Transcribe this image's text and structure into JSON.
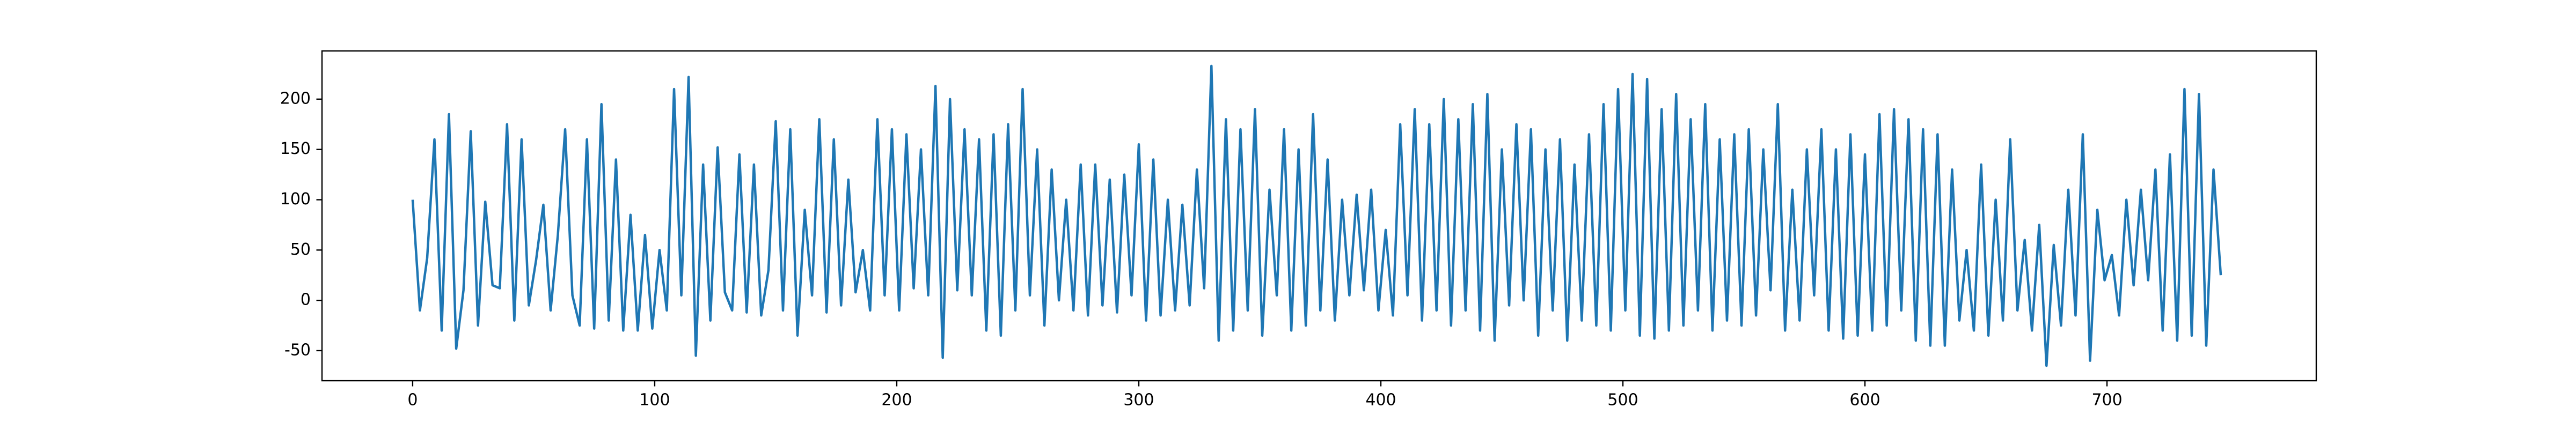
{
  "chart_data": {
    "type": "line",
    "color": "#1f77b4",
    "x": [
      0,
      3,
      6,
      9,
      12,
      15,
      18,
      21,
      24,
      27,
      30,
      33,
      36,
      39,
      42,
      45,
      48,
      51,
      54,
      57,
      60,
      63,
      66,
      69,
      72,
      75,
      78,
      81,
      84,
      87,
      90,
      93,
      96,
      99,
      102,
      105,
      108,
      111,
      114,
      117,
      120,
      123,
      126,
      129,
      132,
      135,
      138,
      141,
      144,
      147,
      150,
      153,
      156,
      159,
      162,
      165,
      168,
      171,
      174,
      177,
      180,
      183,
      186,
      189,
      192,
      195,
      198,
      201,
      204,
      207,
      210,
      213,
      216,
      219,
      222,
      225,
      228,
      231,
      234,
      237,
      240,
      243,
      246,
      249,
      252,
      255,
      258,
      261,
      264,
      267,
      270,
      273,
      276,
      279,
      282,
      285,
      288,
      291,
      294,
      297,
      300,
      303,
      306,
      309,
      312,
      315,
      318,
      321,
      324,
      327,
      330,
      333,
      336,
      339,
      342,
      345,
      348,
      351,
      354,
      357,
      360,
      363,
      366,
      369,
      372,
      375,
      378,
      381,
      384,
      387,
      390,
      393,
      396,
      399,
      402,
      405,
      408,
      411,
      414,
      417,
      420,
      423,
      426,
      429,
      432,
      435,
      438,
      441,
      444,
      447,
      450,
      453,
      456,
      459,
      462,
      465,
      468,
      471,
      474,
      477,
      480,
      483,
      486,
      489,
      492,
      495,
      498,
      501,
      504,
      507,
      510,
      513,
      516,
      519,
      522,
      525,
      528,
      531,
      534,
      537,
      540,
      543,
      546,
      549,
      552,
      555,
      558,
      561,
      564,
      567,
      570,
      573,
      576,
      579,
      582,
      585,
      588,
      591,
      594,
      597,
      600,
      603,
      606,
      609,
      612,
      615,
      618,
      621,
      624,
      627,
      630,
      633,
      636,
      639,
      642,
      645,
      648,
      651,
      654,
      657,
      660,
      663,
      666,
      669,
      672,
      675,
      678,
      681,
      684,
      687,
      690,
      693,
      696,
      699,
      702,
      705,
      708,
      711,
      714,
      717,
      720,
      723,
      726,
      729,
      732,
      735,
      738,
      741,
      744,
      747
    ],
    "values": [
      100,
      -10,
      42,
      160,
      -30,
      185,
      -48,
      10,
      168,
      -25,
      98,
      15,
      12,
      175,
      -20,
      160,
      -5,
      40,
      95,
      -10,
      65,
      170,
      5,
      -25,
      160,
      -28,
      195,
      -20,
      140,
      -30,
      85,
      -30,
      65,
      -28,
      50,
      -10,
      210,
      5,
      222,
      -55,
      135,
      -20,
      152,
      8,
      -10,
      145,
      -12,
      135,
      -15,
      30,
      178,
      -10,
      170,
      -35,
      90,
      5,
      180,
      -12,
      160,
      -5,
      120,
      8,
      50,
      -10,
      180,
      5,
      170,
      -10,
      165,
      12,
      150,
      5,
      213,
      -57,
      200,
      10,
      170,
      5,
      160,
      -30,
      165,
      -35,
      175,
      -10,
      210,
      5,
      150,
      -25,
      130,
      0,
      100,
      -10,
      135,
      -15,
      135,
      -5,
      120,
      -12,
      125,
      5,
      155,
      -20,
      140,
      -15,
      100,
      -10,
      95,
      -5,
      130,
      12,
      233,
      -40,
      180,
      -30,
      170,
      -10,
      190,
      -35,
      110,
      5,
      170,
      -30,
      150,
      -25,
      185,
      -10,
      140,
      -20,
      100,
      5,
      105,
      10,
      110,
      -10,
      70,
      -15,
      175,
      5,
      190,
      -20,
      175,
      -10,
      200,
      -25,
      180,
      -10,
      195,
      -30,
      205,
      -40,
      150,
      -5,
      175,
      0,
      170,
      -35,
      150,
      -10,
      160,
      -40,
      135,
      -20,
      165,
      -25,
      195,
      -30,
      210,
      -10,
      225,
      -35,
      220,
      -38,
      190,
      -30,
      205,
      -25,
      180,
      -10,
      195,
      -30,
      160,
      -20,
      165,
      -25,
      170,
      -15,
      150,
      10,
      195,
      -30,
      110,
      -20,
      150,
      5,
      170,
      -30,
      150,
      -38,
      165,
      -35,
      145,
      -30,
      185,
      -25,
      190,
      -10,
      180,
      -40,
      170,
      -45,
      165,
      -45,
      130,
      -20,
      50,
      -30,
      135,
      -35,
      100,
      -20,
      160,
      -10,
      60,
      -30,
      75,
      -65,
      55,
      -25,
      110,
      -15,
      165,
      -60,
      90,
      20,
      45,
      -15,
      100,
      15,
      110,
      20,
      130,
      -30,
      145,
      -40,
      210,
      -35,
      205,
      -45,
      130,
      25
    ],
    "xlim": [
      -37.45,
      786.45
    ],
    "ylim": [
      -79.9,
      247.9
    ],
    "xticks": [
      0,
      100,
      200,
      300,
      400,
      500,
      600,
      700
    ],
    "yticks": [
      -50,
      0,
      50,
      100,
      150,
      200
    ]
  }
}
